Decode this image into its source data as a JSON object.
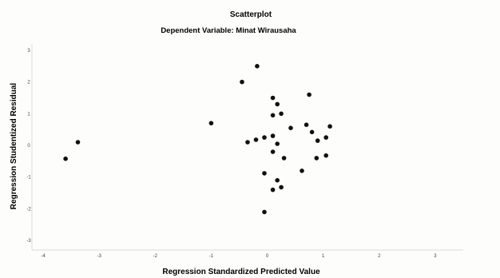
{
  "chart_data": {
    "type": "scatter",
    "title": "Scatterplot",
    "subtitle": "Dependent Variable: Minat Wirausaha",
    "xlabel": "Regression Standardized Predicted Value",
    "ylabel": "Regression Studentized Residual",
    "xlim": [
      -4.2,
      3.5
    ],
    "ylim": [
      -3.3,
      3.2
    ],
    "x_ticks": [
      -4,
      -3,
      -2,
      -1,
      0,
      1,
      2,
      3
    ],
    "x_tick_labels": [
      "-4",
      "-3",
      "-2",
      "-1",
      "0",
      "1",
      "2",
      "3"
    ],
    "y_ticks": [
      3,
      2,
      1,
      0,
      -1,
      -2,
      -3
    ],
    "y_tick_labels": [
      "3",
      "2",
      "1",
      "0",
      "-1",
      "-2",
      "-3"
    ],
    "grid": false,
    "marker_color": "#111111",
    "points": [
      {
        "x": -3.6,
        "y": -0.42
      },
      {
        "x": -3.38,
        "y": 0.1
      },
      {
        "x": -1.0,
        "y": 0.7
      },
      {
        "x": -0.45,
        "y": 2.0
      },
      {
        "x": -0.18,
        "y": 2.5
      },
      {
        "x": -0.35,
        "y": 0.1
      },
      {
        "x": -0.2,
        "y": 0.18
      },
      {
        "x": -0.05,
        "y": 0.25
      },
      {
        "x": 0.1,
        "y": 1.5
      },
      {
        "x": 0.18,
        "y": 1.3
      },
      {
        "x": 0.25,
        "y": 1.0
      },
      {
        "x": 0.1,
        "y": 0.95
      },
      {
        "x": 0.42,
        "y": 0.55
      },
      {
        "x": 0.1,
        "y": 0.3
      },
      {
        "x": 0.18,
        "y": 0.05
      },
      {
        "x": 0.1,
        "y": -0.2
      },
      {
        "x": 0.3,
        "y": -0.4
      },
      {
        "x": -0.05,
        "y": -0.88
      },
      {
        "x": 0.18,
        "y": -1.1
      },
      {
        "x": 0.1,
        "y": -1.4
      },
      {
        "x": 0.25,
        "y": -1.32
      },
      {
        "x": -0.05,
        "y": -2.1
      },
      {
        "x": 0.75,
        "y": 1.6
      },
      {
        "x": 0.7,
        "y": 0.65
      },
      {
        "x": 0.8,
        "y": 0.42
      },
      {
        "x": 0.9,
        "y": 0.15
      },
      {
        "x": 1.05,
        "y": 0.25
      },
      {
        "x": 1.12,
        "y": 0.6
      },
      {
        "x": 0.62,
        "y": -0.8
      },
      {
        "x": 0.88,
        "y": -0.4
      },
      {
        "x": 1.05,
        "y": -0.32
      }
    ]
  }
}
